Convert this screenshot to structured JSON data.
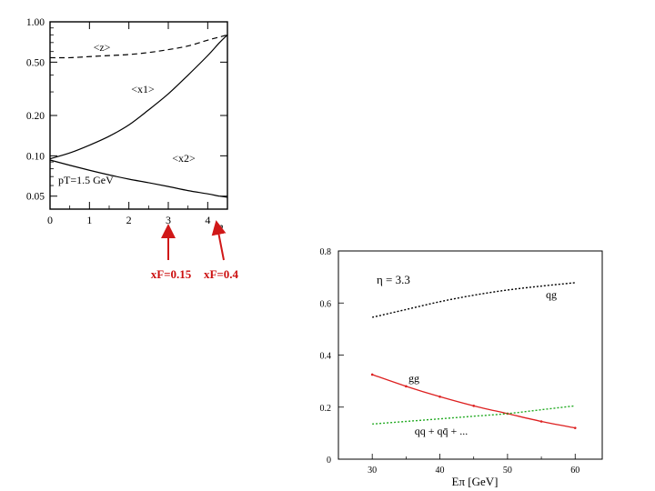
{
  "chart_data": [
    {
      "type": "line",
      "xlabel": "η",
      "x_ticks": [
        "0",
        "1",
        "2",
        "3",
        "4"
      ],
      "y_ticks": [
        "1.00",
        "0.50",
        "0.20",
        "0.10",
        "0.05"
      ],
      "y_scale": "log",
      "xlim": [
        0,
        4.5
      ],
      "ylim": [
        0.04,
        1.0
      ],
      "grid": false,
      "annotation": "pT=1.5 GeV",
      "series": [
        {
          "name": "<z>",
          "style": "dashed",
          "x": [
            0,
            0.5,
            1,
            1.5,
            2,
            2.5,
            3,
            3.5,
            4,
            4.3,
            4.5
          ],
          "y": [
            0.54,
            0.54,
            0.55,
            0.56,
            0.57,
            0.59,
            0.62,
            0.66,
            0.73,
            0.77,
            0.8
          ]
        },
        {
          "name": "<x1>",
          "style": "solid",
          "x": [
            0,
            0.5,
            1,
            1.5,
            2,
            2.5,
            3,
            3.5,
            4,
            4.3,
            4.5
          ],
          "y": [
            0.095,
            0.105,
            0.12,
            0.14,
            0.17,
            0.22,
            0.29,
            0.4,
            0.56,
            0.7,
            0.8
          ]
        },
        {
          "name": "<x2>",
          "style": "solid",
          "x": [
            0,
            0.5,
            1,
            1.5,
            2,
            2.5,
            3,
            3.5,
            4,
            4.3,
            4.5
          ],
          "y": [
            0.093,
            0.085,
            0.078,
            0.072,
            0.067,
            0.063,
            0.059,
            0.055,
            0.052,
            0.05,
            0.049
          ]
        }
      ],
      "markers": [
        {
          "label": "xF=0.15",
          "x": 3.0
        },
        {
          "label": "xF=0.4",
          "x": 4.2
        }
      ]
    },
    {
      "type": "line",
      "xlabel": "Eπ [GeV]",
      "x_ticks": [
        "30",
        "40",
        "50",
        "60"
      ],
      "y_ticks": [
        "0",
        "0.2",
        "0.4",
        "0.6",
        "0.8"
      ],
      "xlim": [
        25,
        64
      ],
      "ylim": [
        0,
        0.8
      ],
      "grid": false,
      "annotation": "η = 3.3",
      "series": [
        {
          "name": "qg",
          "color": "#000000",
          "style": "dotted",
          "x": [
            30,
            35,
            40,
            45,
            50,
            55,
            60
          ],
          "y": [
            0.545,
            0.575,
            0.605,
            0.63,
            0.65,
            0.665,
            0.678
          ]
        },
        {
          "name": "gg",
          "color": "#dd2020",
          "style": "solid",
          "x": [
            30,
            35,
            40,
            45,
            50,
            55,
            60
          ],
          "y": [
            0.325,
            0.28,
            0.24,
            0.205,
            0.175,
            0.145,
            0.12
          ]
        },
        {
          "name": "qq + qq̄ + ...",
          "color": "#22aa22",
          "style": "dotted",
          "x": [
            30,
            35,
            40,
            45,
            50,
            55,
            60
          ],
          "y": [
            0.135,
            0.145,
            0.155,
            0.165,
            0.175,
            0.19,
            0.205
          ]
        }
      ]
    }
  ]
}
